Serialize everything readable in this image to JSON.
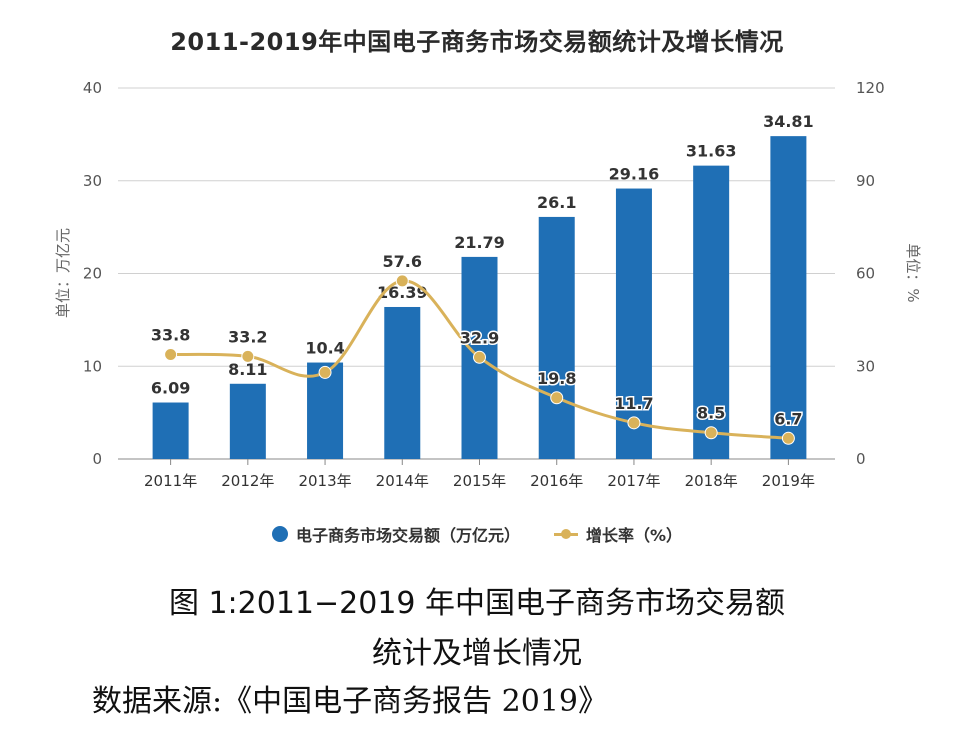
{
  "figure": {
    "caption_line1": "图 1:2011−2019 年中国电子商务市场交易额",
    "caption_line2": "统计及增长情况",
    "source": "数据来源:《中国电子商务报告 2019》"
  },
  "colors": {
    "bar": "#1f6fb5",
    "line": "#d9b25a",
    "grid": "#d0d0d0"
  },
  "chart_data": {
    "type": "bar",
    "title": "2011-2019年中国电子商务市场交易额统计及增长情况",
    "categories": [
      "2011年",
      "2012年",
      "2013年",
      "2014年",
      "2015年",
      "2016年",
      "2017年",
      "2018年",
      "2019年"
    ],
    "series": [
      {
        "name": "电子商务市场交易额（万亿元）",
        "type": "bar",
        "axis": "left",
        "values": [
          6.09,
          8.11,
          10.4,
          16.39,
          21.79,
          26.1,
          29.16,
          31.63,
          34.81
        ],
        "labels": [
          "6.09",
          "8.11",
          "10.4",
          "16.39",
          "21.79",
          "26.1",
          "29.16",
          "31.63",
          "34.81"
        ]
      },
      {
        "name": "增长率（%）",
        "type": "line",
        "axis": "right",
        "values": [
          33.8,
          33.2,
          28.0,
          57.6,
          32.9,
          19.8,
          11.7,
          8.5,
          6.7
        ],
        "labels": [
          "33.8",
          "33.2",
          "",
          "57.6",
          "32.9",
          "19.8",
          "11.7",
          "8.5",
          "6.7"
        ]
      }
    ],
    "ylabel": "单位：万亿元",
    "y2label": "单位：%",
    "xlabel": "",
    "ylim": [
      0,
      40
    ],
    "y2lim": [
      0,
      120
    ],
    "yticks": [
      "0",
      "10",
      "20",
      "30",
      "40"
    ],
    "y2ticks": [
      "0",
      "30",
      "60",
      "90",
      "120"
    ],
    "grid": true,
    "legend_position": "bottom",
    "legend": [
      "电子商务市场交易额（万亿元）",
      "增长率（%）"
    ]
  }
}
